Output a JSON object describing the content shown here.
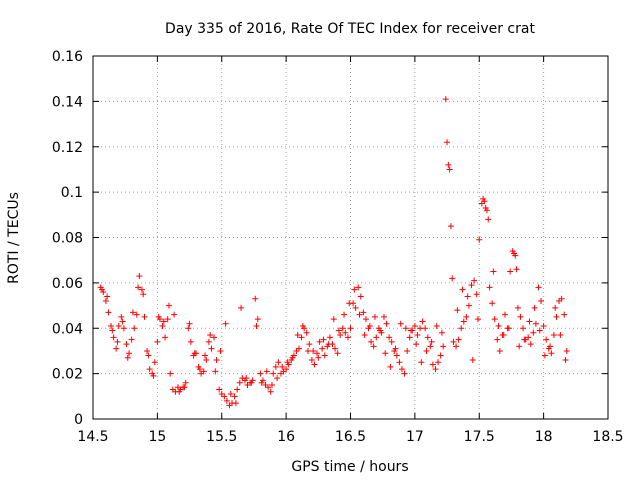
{
  "chart_data": {
    "type": "scatter",
    "title": "Day 335 of 2016, Rate Of TEC Index for receiver crat",
    "xlabel": "GPS time / hours",
    "ylabel": "ROTI / TECUs",
    "xlim": [
      14.5,
      18.5
    ],
    "ylim": [
      0,
      0.16
    ],
    "xticks": [
      "14.5",
      "15",
      "15.5",
      "16",
      "16.5",
      "17",
      "17.5",
      "18",
      "18.5"
    ],
    "yticks": [
      "0",
      "0.02",
      "0.04",
      "0.06",
      "0.08",
      "0.1",
      "0.12",
      "0.14",
      "0.16"
    ],
    "grid": true,
    "marker": "+",
    "color": "#ff0000",
    "series": [
      {
        "name": "crat",
        "x": [
          14.56,
          14.58,
          14.6,
          14.62,
          14.64,
          14.66,
          14.68,
          14.7,
          14.72,
          14.74,
          14.76,
          14.78,
          14.8,
          14.82,
          14.84,
          14.86,
          14.88,
          14.9,
          14.92,
          14.94,
          14.96,
          14.98,
          15.0,
          15.02,
          15.04,
          15.06,
          15.08,
          15.1,
          15.12,
          15.14,
          15.16,
          15.18,
          15.2,
          15.22,
          15.24,
          15.26,
          15.28,
          15.3,
          15.32,
          15.34,
          15.36,
          15.38,
          15.4,
          15.42,
          15.44,
          15.46,
          15.48,
          15.5,
          15.52,
          15.54,
          15.56,
          15.58,
          15.6,
          15.62,
          15.64,
          15.66,
          15.68,
          15.7,
          15.72,
          15.74,
          15.76,
          15.78,
          15.8,
          15.82,
          15.84,
          15.86,
          15.88,
          15.9,
          15.92,
          15.94,
          15.96,
          15.98,
          16.0,
          16.02,
          16.04,
          16.06,
          16.08,
          16.1,
          16.12,
          16.14,
          16.16,
          16.18,
          16.2,
          16.22,
          16.24,
          16.26,
          16.28,
          16.3,
          16.32,
          16.34,
          16.36,
          16.38,
          16.4,
          16.42,
          16.44,
          16.46,
          16.48,
          16.5,
          16.52,
          16.54,
          16.56,
          16.58,
          16.6,
          16.62,
          16.64,
          16.66,
          16.68,
          16.7,
          16.72,
          16.74,
          16.76,
          16.78,
          16.8,
          16.82,
          16.84,
          16.86,
          16.88,
          16.9,
          16.92,
          16.94,
          16.96,
          16.98,
          17.0,
          17.02,
          17.04,
          17.06,
          17.08,
          17.1,
          17.12,
          17.14,
          17.16,
          17.18,
          17.2,
          17.22,
          17.24,
          17.25,
          17.26,
          17.27,
          17.28,
          17.29,
          17.3,
          17.32,
          17.34,
          17.36,
          17.38,
          17.4,
          17.42,
          17.44,
          17.46,
          17.48,
          17.5,
          17.52,
          17.53,
          17.54,
          17.55,
          17.56,
          17.57,
          17.58,
          17.6,
          17.62,
          17.64,
          17.66,
          17.68,
          17.7,
          17.72,
          17.74,
          17.76,
          17.77,
          17.78,
          17.79,
          17.8,
          17.82,
          17.84,
          17.86,
          17.88,
          17.9,
          17.92,
          17.94,
          17.96,
          17.98,
          18.0,
          18.02,
          18.04,
          18.06,
          18.08,
          18.1,
          18.12,
          18.14,
          18.16,
          18.18,
          14.57,
          14.61,
          14.65,
          14.69,
          14.73,
          14.77,
          14.81,
          14.85,
          14.89,
          14.93,
          14.97,
          15.01,
          15.05,
          15.09,
          15.13,
          15.17,
          15.21,
          15.25,
          15.29,
          15.33,
          15.37,
          15.41,
          15.45,
          15.49,
          15.53,
          15.57,
          15.61,
          15.65,
          15.69,
          15.73,
          15.77,
          15.81,
          15.85,
          15.89,
          15.93,
          15.97,
          16.01,
          16.05,
          16.09,
          16.13,
          16.17,
          16.21,
          16.25,
          16.29,
          16.33,
          16.37,
          16.41,
          16.45,
          16.49,
          16.53,
          16.57,
          16.61,
          16.65,
          16.69,
          16.73,
          16.77,
          16.81,
          16.85,
          16.89,
          16.93,
          16.97,
          17.01,
          17.05,
          17.09,
          17.13,
          17.17,
          17.21,
          17.33,
          17.37,
          17.41,
          17.45,
          17.49,
          17.61,
          17.65,
          17.69,
          17.73,
          17.81,
          17.85,
          17.89,
          17.93,
          17.97,
          18.01,
          18.05,
          18.09,
          18.13,
          18.17
        ],
        "y": [
          0.058,
          0.056,
          0.052,
          0.047,
          0.041,
          0.036,
          0.031,
          0.041,
          0.045,
          0.04,
          0.033,
          0.029,
          0.035,
          0.04,
          0.046,
          0.063,
          0.057,
          0.045,
          0.03,
          0.022,
          0.02,
          0.025,
          0.034,
          0.044,
          0.041,
          0.036,
          0.044,
          0.02,
          0.013,
          0.012,
          0.014,
          0.013,
          0.014,
          0.016,
          0.04,
          0.034,
          0.028,
          0.029,
          0.023,
          0.02,
          0.021,
          0.026,
          0.034,
          0.031,
          0.036,
          0.026,
          0.013,
          0.011,
          0.01,
          0.008,
          0.006,
          0.007,
          0.01,
          0.013,
          0.016,
          0.018,
          0.017,
          0.015,
          0.016,
          0.017,
          0.053,
          0.044,
          0.02,
          0.017,
          0.015,
          0.014,
          0.012,
          0.02,
          0.023,
          0.025,
          0.02,
          0.021,
          0.022,
          0.024,
          0.026,
          0.028,
          0.03,
          0.031,
          0.036,
          0.04,
          0.038,
          0.033,
          0.026,
          0.024,
          0.029,
          0.034,
          0.031,
          0.028,
          0.032,
          0.036,
          0.033,
          0.031,
          0.029,
          0.037,
          0.04,
          0.038,
          0.036,
          0.04,
          0.051,
          0.049,
          0.058,
          0.054,
          0.047,
          0.044,
          0.04,
          0.034,
          0.032,
          0.036,
          0.04,
          0.038,
          0.045,
          0.042,
          0.036,
          0.034,
          0.03,
          0.028,
          0.025,
          0.022,
          0.02,
          0.03,
          0.036,
          0.039,
          0.041,
          0.037,
          0.04,
          0.043,
          0.04,
          0.036,
          0.032,
          0.024,
          0.022,
          0.025,
          0.028,
          0.032,
          0.141,
          0.122,
          0.112,
          0.11,
          0.085,
          0.062,
          0.034,
          0.032,
          0.035,
          0.04,
          0.043,
          0.045,
          0.05,
          0.059,
          0.061,
          0.055,
          0.079,
          0.095,
          0.097,
          0.096,
          0.093,
          0.092,
          0.088,
          0.058,
          0.051,
          0.044,
          0.035,
          0.03,
          0.037,
          0.046,
          0.04,
          0.065,
          0.074,
          0.073,
          0.072,
          0.066,
          0.049,
          0.045,
          0.04,
          0.035,
          0.036,
          0.033,
          0.038,
          0.042,
          0.058,
          0.052,
          0.041,
          0.035,
          0.031,
          0.029,
          0.037,
          0.045,
          0.052,
          0.053,
          0.046,
          0.03,
          0.057,
          0.054,
          0.039,
          0.034,
          0.043,
          0.027,
          0.047,
          0.058,
          0.055,
          0.028,
          0.019,
          0.045,
          0.043,
          0.05,
          0.046,
          0.012,
          0.014,
          0.042,
          0.029,
          0.022,
          0.028,
          0.037,
          0.021,
          0.03,
          0.042,
          0.011,
          0.007,
          0.049,
          0.018,
          0.016,
          0.041,
          0.016,
          0.021,
          0.015,
          0.018,
          0.023,
          0.025,
          0.027,
          0.037,
          0.041,
          0.03,
          0.03,
          0.027,
          0.035,
          0.033,
          0.044,
          0.039,
          0.046,
          0.051,
          0.057,
          0.046,
          0.037,
          0.041,
          0.045,
          0.039,
          0.029,
          0.023,
          0.031,
          0.042,
          0.04,
          0.039,
          0.033,
          0.025,
          0.03,
          0.034,
          0.041,
          0.038,
          0.048,
          0.057,
          0.054,
          0.026,
          0.044,
          0.065,
          0.041,
          0.037,
          0.04,
          0.032,
          0.035,
          0.043,
          0.049,
          0.039,
          0.028,
          0.032,
          0.049,
          0.037,
          0.026
        ]
      }
    ]
  }
}
